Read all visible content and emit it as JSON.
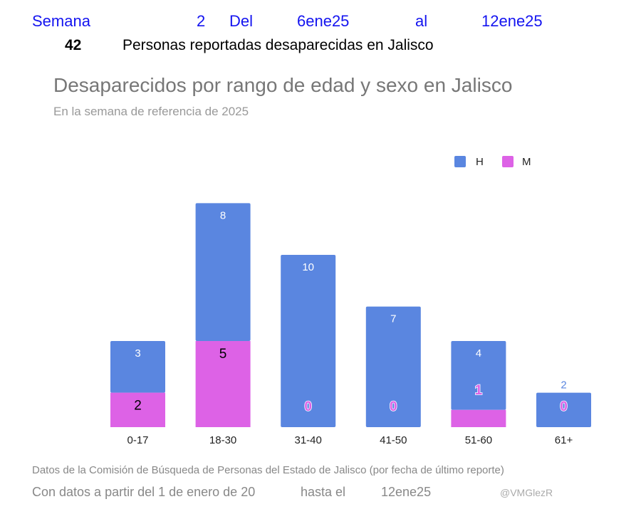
{
  "header": {
    "semana_label": "Semana",
    "semana_num": "2",
    "del_label": "Del",
    "start": "6ene25",
    "al_label": "al",
    "end": "12ene25",
    "total": "42",
    "total_label": "Personas reportadas desaparecidas en Jalisco"
  },
  "footer": {
    "source": "Datos de la Comisión de Búsqueda de Personas del Estado de Jalisco (por fecha de último reporte)",
    "range_label": "Con datos a partir del 1 de enero de 20",
    "until_label": "hasta el",
    "until_date": "12ene25",
    "handle": "@VMGlezR"
  },
  "chart_data": {
    "type": "bar",
    "stacked": true,
    "title": "Desaparecidos por rango de edad y sexo en Jalisco",
    "subtitle": "En la semana de referencia  de 2025",
    "categories": [
      "0-17",
      "18-30",
      "31-40",
      "41-50",
      "51-60",
      "61+"
    ],
    "series": [
      {
        "name": "H",
        "color": "#5a86e0",
        "values": [
          3,
          8,
          10,
          7,
          4,
          2
        ]
      },
      {
        "name": "M",
        "color": "#dd62e6",
        "values": [
          2,
          5,
          0,
          0,
          1,
          0
        ]
      }
    ],
    "legend": "top-right",
    "grid": false,
    "ylim": [
      0,
      13
    ]
  }
}
